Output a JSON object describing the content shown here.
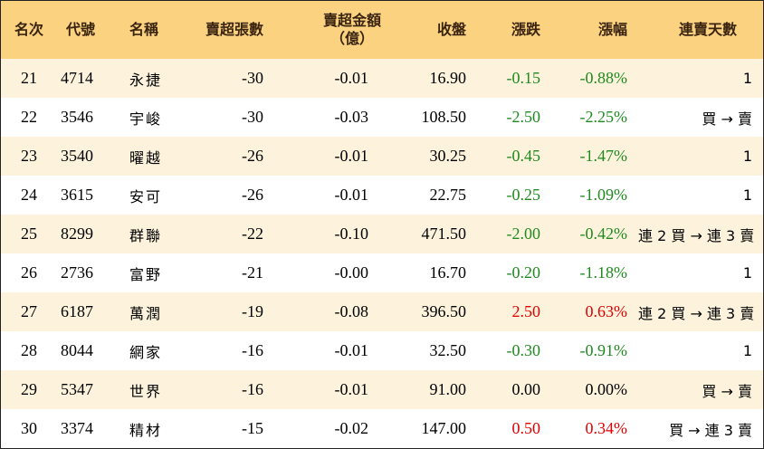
{
  "headers": {
    "rank": "名次",
    "code": "代號",
    "name": "名稱",
    "sell_lots": "賣超張數",
    "sell_amount_line1": "賣超金額",
    "sell_amount_line2": "（億）",
    "close": "收盤",
    "change": "漲跌",
    "pct": "漲幅",
    "days": "連賣天數"
  },
  "rows": [
    {
      "rank": "21",
      "code": "4714",
      "name": "永捷",
      "lots": "-30",
      "amount": "-0.01",
      "close": "16.90",
      "change": "-0.15",
      "pct": "-0.88%",
      "trend": "down",
      "days": "1"
    },
    {
      "rank": "22",
      "code": "3546",
      "name": "宇峻",
      "lots": "-30",
      "amount": "-0.03",
      "close": "108.50",
      "change": "-2.50",
      "pct": "-2.25%",
      "trend": "down",
      "days": "買 → 賣"
    },
    {
      "rank": "23",
      "code": "3540",
      "name": "曜越",
      "lots": "-26",
      "amount": "-0.01",
      "close": "30.25",
      "change": "-0.45",
      "pct": "-1.47%",
      "trend": "down",
      "days": "1"
    },
    {
      "rank": "24",
      "code": "3615",
      "name": "安可",
      "lots": "-26",
      "amount": "-0.01",
      "close": "22.75",
      "change": "-0.25",
      "pct": "-1.09%",
      "trend": "down",
      "days": "1"
    },
    {
      "rank": "25",
      "code": "8299",
      "name": "群聯",
      "lots": "-22",
      "amount": "-0.10",
      "close": "471.50",
      "change": "-2.00",
      "pct": "-0.42%",
      "trend": "down",
      "days": "連 2 買 → 連 3 賣"
    },
    {
      "rank": "26",
      "code": "2736",
      "name": "富野",
      "lots": "-21",
      "amount": "-0.00",
      "close": "16.70",
      "change": "-0.20",
      "pct": "-1.18%",
      "trend": "down",
      "days": "1"
    },
    {
      "rank": "27",
      "code": "6187",
      "name": "萬潤",
      "lots": "-19",
      "amount": "-0.08",
      "close": "396.50",
      "change": "2.50",
      "pct": "0.63%",
      "trend": "up",
      "days": "連 2 買 → 連 3 賣"
    },
    {
      "rank": "28",
      "code": "8044",
      "name": "網家",
      "lots": "-16",
      "amount": "-0.01",
      "close": "32.50",
      "change": "-0.30",
      "pct": "-0.91%",
      "trend": "down",
      "days": "1"
    },
    {
      "rank": "29",
      "code": "5347",
      "name": "世界",
      "lots": "-16",
      "amount": "-0.01",
      "close": "91.00",
      "change": "0.00",
      "pct": "0.00%",
      "trend": "flat",
      "days": "買 → 賣"
    },
    {
      "rank": "30",
      "code": "3374",
      "name": "精材",
      "lots": "-15",
      "amount": "-0.02",
      "close": "147.00",
      "change": "0.50",
      "pct": "0.34%",
      "trend": "up",
      "days": "買 → 連 3 賣"
    }
  ],
  "colors": {
    "header_bg": "#fad280",
    "odd_row_bg": "#fdf3dd",
    "up": "#e00000",
    "down": "#1f8a1f",
    "flat": "#000000"
  }
}
